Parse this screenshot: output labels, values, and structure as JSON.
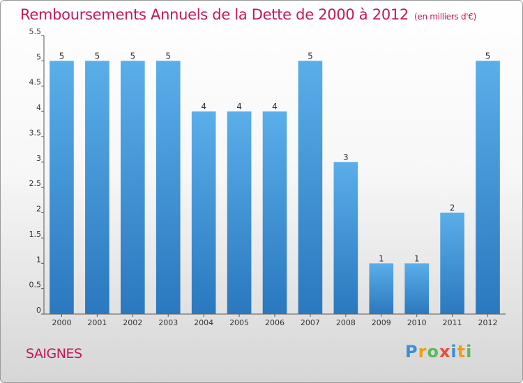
{
  "header": {
    "title": "Remboursements Annuels de la Dette de 2000 à 2012",
    "unit": "(en milliers d'€)"
  },
  "footer": {
    "town": "SAIGNES",
    "logo": [
      {
        "ch": "P",
        "color": "#3a8fd6"
      },
      {
        "ch": "r",
        "color": "#f39c12"
      },
      {
        "ch": "o",
        "color": "#5cb85c"
      },
      {
        "ch": "x",
        "color": "#e74c3c"
      },
      {
        "ch": "i",
        "color": "#3a8fd6"
      },
      {
        "ch": "t",
        "color": "#f39c12"
      },
      {
        "ch": "i",
        "color": "#5cb85c"
      }
    ]
  },
  "chart_data": {
    "type": "bar",
    "title": "Remboursements Annuels de la Dette de 2000 à 2012",
    "categories": [
      "2000",
      "2001",
      "2002",
      "2003",
      "2004",
      "2005",
      "2006",
      "2007",
      "2008",
      "2009",
      "2010",
      "2011",
      "2012"
    ],
    "values": [
      5,
      5,
      5,
      5,
      4,
      4,
      4,
      5,
      3,
      1,
      1,
      2,
      5
    ],
    "ylim": [
      0,
      5.5
    ],
    "yticks": [
      "0",
      "0.5",
      "1",
      "1.5",
      "2",
      "2.5",
      "3",
      "3.5",
      "4",
      "4.5",
      "5",
      "5.5"
    ],
    "grid": false,
    "bar_color": "#4a9ee0"
  }
}
